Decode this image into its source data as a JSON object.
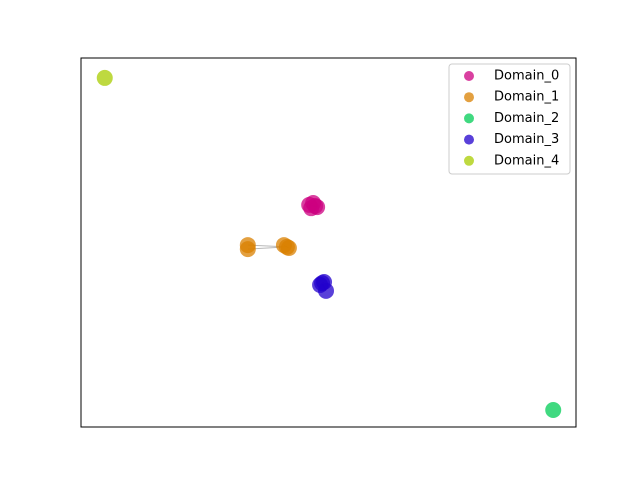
{
  "chart_data": {
    "type": "scatter",
    "xlim": [
      0,
      100
    ],
    "ylim": [
      0,
      100
    ],
    "legend": "upper right",
    "series": [
      {
        "name": "Domain_0",
        "color": "#cc0080",
        "x": [
          46.1,
          46.9,
          47.7,
          46.5,
          47.3
        ],
        "y": [
          60.2,
          60.7,
          59.6,
          59.3,
          59.9
        ]
      },
      {
        "name": "Domain_1",
        "color": "#d98000",
        "x": [
          41.6,
          41.0,
          42.0,
          33.7,
          33.7
        ],
        "y": [
          48.8,
          49.3,
          48.5,
          49.3,
          48.2
        ]
      },
      {
        "name": "Domain_2",
        "color": "#00cc55",
        "x": [
          95.4
        ],
        "y": [
          4.6
        ]
      },
      {
        "name": "Domain_3",
        "color": "#2200cc",
        "x": [
          48.7,
          49.5,
          48.3,
          49.1
        ],
        "y": [
          39.0,
          36.9,
          38.5,
          39.3
        ]
      },
      {
        "name": "Domain_4",
        "color": "#a8cc00",
        "x": [
          4.8
        ],
        "y": [
          94.6
        ]
      }
    ]
  }
}
